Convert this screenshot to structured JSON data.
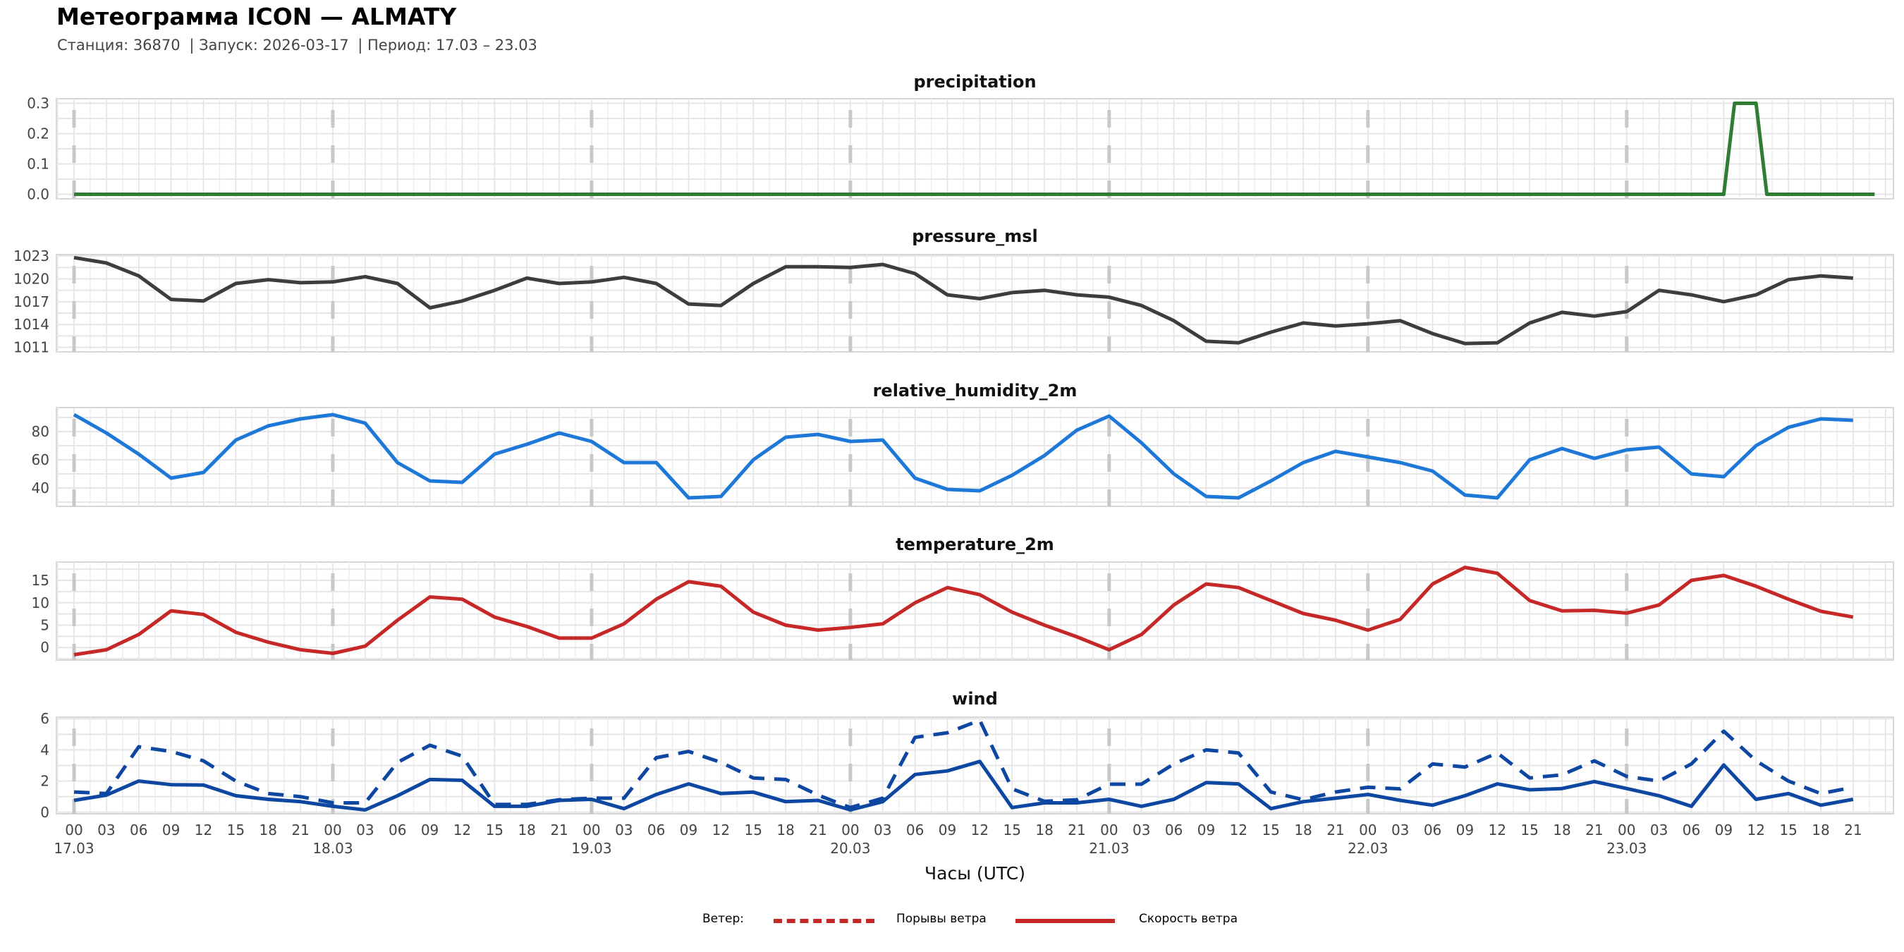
{
  "header": {
    "title": "Метеограмма ICON — ALMATY",
    "station": "Станция: 36870",
    "run": "| Запуск: 2026-03-17",
    "period": "| Период: 17.03 – 23.03"
  },
  "legend": {
    "title": "Ветер:",
    "gusts_label": "Порывы ветра",
    "speed_label": "Скорость ветра",
    "color": "#c62828"
  },
  "chart_data": {
    "type": "line",
    "x_unit": "hours since 17.03 00 UTC",
    "x": [
      0,
      3,
      6,
      9,
      12,
      15,
      18,
      21,
      24,
      27,
      30,
      33,
      36,
      39,
      42,
      45,
      48,
      51,
      54,
      57,
      60,
      63,
      66,
      69,
      72,
      75,
      78,
      81,
      84,
      87,
      90,
      93,
      96,
      99,
      102,
      105,
      108,
      111,
      114,
      117,
      120,
      123,
      126,
      129,
      132,
      135,
      138,
      141,
      144,
      147,
      150,
      153,
      156,
      159,
      162,
      165
    ],
    "xlabel": "Часы (UTC)",
    "x_tick_labels": [
      "00",
      "03",
      "06",
      "09",
      "12",
      "15",
      "18",
      "21"
    ],
    "date_labels": [
      "17.03",
      "18.03",
      "19.03",
      "20.03",
      "21.03",
      "22.03",
      "23.03"
    ],
    "grid": true,
    "panels": [
      {
        "title": "precipitation",
        "ylim": [
          -0.015,
          0.315
        ],
        "yticks": [
          "0.0",
          "0.1",
          "0.2",
          "0.3"
        ],
        "ytick_values": [
          0,
          0.1,
          0.2,
          0.3
        ],
        "series": [
          {
            "x": [
              0,
              153,
              154,
              156,
              157,
              167
            ],
            "values": [
              0,
              0,
              0.3,
              0.3,
              0,
              0
            ],
            "color": "#2e7d32",
            "style": "solid"
          }
        ]
      },
      {
        "title": "pressure_msl",
        "ylim": [
          1010.4,
          1023.2
        ],
        "yticks": [
          "1011",
          "1014",
          "1017",
          "1020",
          "1023"
        ],
        "ytick_values": [
          1011,
          1014,
          1017,
          1020,
          1023
        ],
        "series": [
          {
            "values": [
              1022.8,
              1022.1,
              1020.4,
              1017.3,
              1017.1,
              1019.4,
              1019.9,
              1019.5,
              1019.6,
              1020.3,
              1019.4,
              1016.2,
              1017.1,
              1018.5,
              1020.1,
              1019.4,
              1019.6,
              1020.2,
              1019.4,
              1016.7,
              1016.5,
              1019.4,
              1021.6,
              1021.6,
              1021.5,
              1021.9,
              1020.7,
              1017.9,
              1017.4,
              1018.2,
              1018.5,
              1017.9,
              1017.6,
              1016.5,
              1014.5,
              1011.8,
              1011.6,
              1013.0,
              1014.2,
              1013.8,
              1014.1,
              1014.5,
              1012.8,
              1011.5,
              1011.6,
              1014.2,
              1015.6,
              1015.1,
              1015.7,
              1018.5,
              1017.9,
              1017.0,
              1017.9,
              1019.9,
              1020.4,
              1020.1
            ],
            "color": "#3d3d3d",
            "style": "solid"
          }
        ]
      },
      {
        "title": "relative_humidity_2m",
        "ylim": [
          27,
          97
        ],
        "yticks": [
          "40",
          "60",
          "80"
        ],
        "ytick_values": [
          40,
          60,
          80
        ],
        "series": [
          {
            "values": [
              92,
              79,
              64,
              47,
              51,
              74,
              84,
              89,
              92,
              86,
              58,
              45,
              44,
              64,
              71,
              79,
              73,
              58,
              58,
              33,
              34,
              60,
              76,
              78,
              73,
              74,
              47,
              39,
              38,
              49,
              63,
              81,
              91,
              72,
              50,
              34,
              33,
              45,
              58,
              66,
              62,
              58,
              52,
              35,
              33,
              60,
              68,
              61,
              67,
              69,
              50,
              48,
              70,
              83,
              89,
              88
            ],
            "color": "#1e78d8",
            "style": "solid"
          }
        ]
      },
      {
        "title": "temperature_2m",
        "ylim": [
          -2.8,
          19.1
        ],
        "yticks": [
          "0",
          "5",
          "10",
          "15"
        ],
        "ytick_values": [
          0,
          5,
          10,
          15
        ],
        "series": [
          {
            "values": [
              -1.6,
              -0.5,
              2.9,
              8.2,
              7.4,
              3.4,
              1.2,
              -0.5,
              -1.3,
              0.3,
              6.1,
              11.3,
              10.8,
              6.8,
              4.7,
              2.1,
              2.1,
              5.3,
              10.8,
              14.7,
              13.7,
              7.9,
              5.0,
              3.9,
              4.5,
              5.3,
              10.0,
              13.4,
              11.8,
              7.9,
              5.0,
              2.4,
              -0.5,
              2.9,
              9.5,
              14.2,
              13.4,
              10.5,
              7.6,
              6.1,
              3.9,
              6.3,
              14.2,
              17.9,
              16.6,
              10.5,
              8.2,
              8.3,
              7.7,
              9.5,
              15.0,
              16.1,
              13.7,
              10.8,
              8.1,
              6.8
            ],
            "color": "#c62828",
            "style": "solid"
          }
        ]
      },
      {
        "title": "wind",
        "ylim": [
          -0.1,
          6.1
        ],
        "yticks": [
          "0",
          "2",
          "4",
          "6"
        ],
        "ytick_values": [
          0,
          2,
          4,
          6
        ],
        "series": [
          {
            "name": "Порывы ветра",
            "values": [
              1.3,
              1.2,
              4.2,
              3.9,
              3.3,
              2.0,
              1.2,
              1.0,
              0.6,
              0.6,
              3.2,
              4.3,
              3.6,
              0.5,
              0.5,
              0.8,
              0.9,
              0.9,
              3.5,
              3.9,
              3.2,
              2.2,
              2.1,
              1.1,
              0.3,
              0.9,
              4.8,
              5.1,
              5.9,
              1.5,
              0.7,
              0.8,
              1.8,
              1.8,
              3.1,
              4.0,
              3.8,
              1.3,
              0.8,
              1.3,
              1.6,
              1.5,
              3.1,
              2.9,
              3.8,
              2.2,
              2.4,
              3.3,
              2.3,
              2.0,
              3.1,
              5.2,
              3.3,
              2.0,
              1.2,
              1.6
            ],
            "color": "#0d47a1",
            "style": "dashed"
          },
          {
            "name": "Скорость ветра",
            "values": [
              0.76,
              1.1,
              2.0,
              1.77,
              1.74,
              1.06,
              0.83,
              0.68,
              0.38,
              0.15,
              1.06,
              2.1,
              2.05,
              0.38,
              0.38,
              0.76,
              0.83,
              0.23,
              1.14,
              1.82,
              1.2,
              1.29,
              0.68,
              0.76,
              0.15,
              0.68,
              2.42,
              2.65,
              3.26,
              0.3,
              0.6,
              0.6,
              0.83,
              0.38,
              0.83,
              1.9,
              1.82,
              0.23,
              0.68,
              0.9,
              1.14,
              0.76,
              0.45,
              1.06,
              1.82,
              1.44,
              1.52,
              1.97,
              1.52,
              1.06,
              0.38,
              3.03,
              0.83,
              1.2,
              0.45,
              0.83
            ],
            "color": "#0d47a1",
            "style": "solid"
          }
        ]
      }
    ]
  }
}
